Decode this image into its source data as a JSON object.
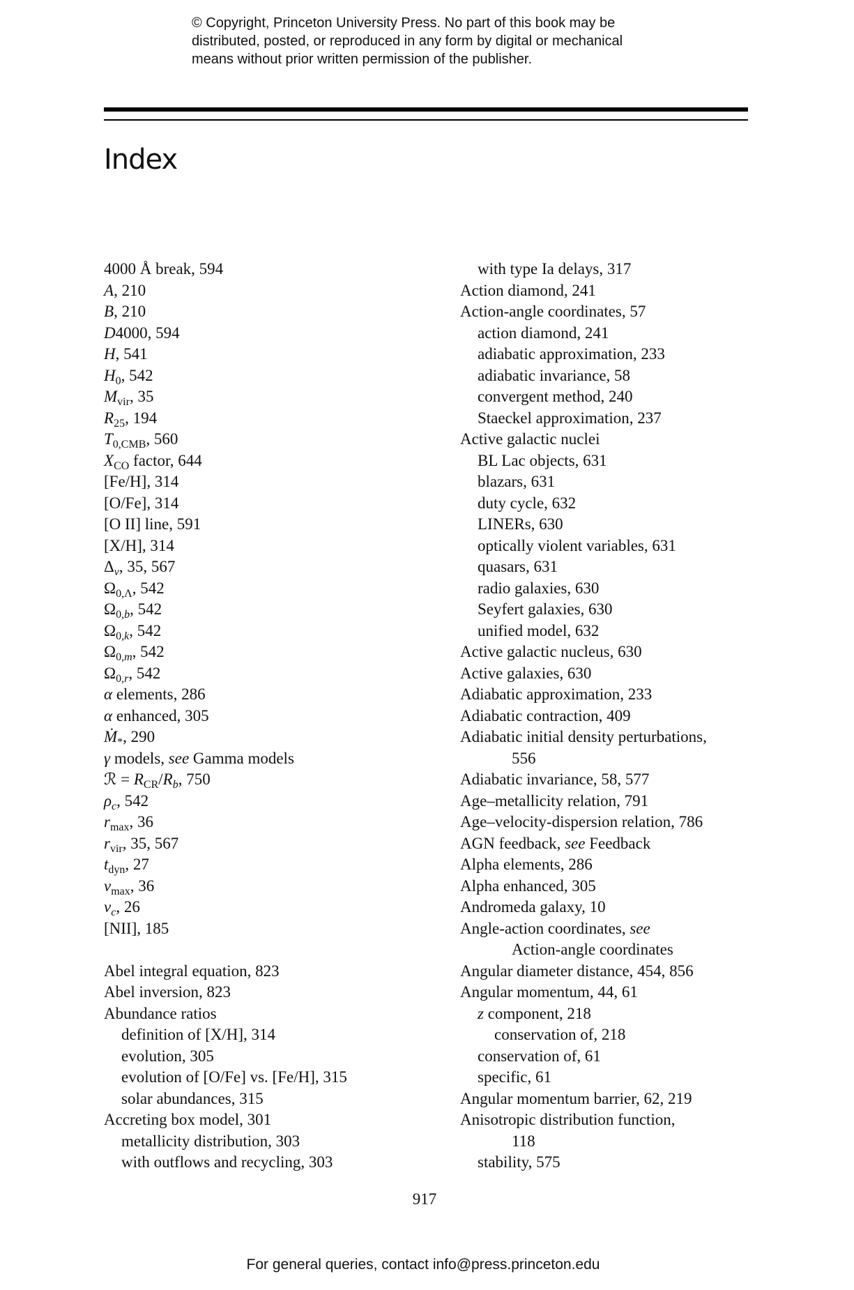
{
  "header": {
    "copyright_lines": [
      "© Copyright, Princeton University Press. No part of this book may be",
      "distributed, posted, or reproduced in any form by digital or mechanical",
      "means without prior written permission of the publisher."
    ]
  },
  "title": "Index",
  "left": [
    {
      "indent": 0,
      "segs": [
        [
          "",
          "4000 Å break, 594"
        ]
      ]
    },
    {
      "indent": 0,
      "segs": [
        [
          "i",
          "A"
        ],
        [
          "",
          ", 210"
        ]
      ]
    },
    {
      "indent": 0,
      "segs": [
        [
          "i",
          "B"
        ],
        [
          "",
          ", 210"
        ]
      ]
    },
    {
      "indent": 0,
      "segs": [
        [
          "i",
          "D"
        ],
        [
          "",
          "4000, 594"
        ]
      ]
    },
    {
      "indent": 0,
      "segs": [
        [
          "i",
          "H"
        ],
        [
          "",
          ", 541"
        ]
      ]
    },
    {
      "indent": 0,
      "segs": [
        [
          "i",
          "H"
        ],
        [
          "s",
          "0"
        ],
        [
          "",
          ", 542"
        ]
      ]
    },
    {
      "indent": 0,
      "segs": [
        [
          "i",
          "M"
        ],
        [
          "s",
          "vir"
        ],
        [
          "",
          ", 35"
        ]
      ]
    },
    {
      "indent": 0,
      "segs": [
        [
          "i",
          "R"
        ],
        [
          "s",
          "25"
        ],
        [
          "",
          ", 194"
        ]
      ]
    },
    {
      "indent": 0,
      "segs": [
        [
          "i",
          "T"
        ],
        [
          "s",
          "0,CMB"
        ],
        [
          "",
          ", 560"
        ]
      ]
    },
    {
      "indent": 0,
      "segs": [
        [
          "i",
          "X"
        ],
        [
          "s",
          "CO"
        ],
        [
          "",
          " factor, 644"
        ]
      ]
    },
    {
      "indent": 0,
      "segs": [
        [
          "",
          "[Fe/H], 314"
        ]
      ]
    },
    {
      "indent": 0,
      "segs": [
        [
          "",
          "[O/Fe], 314"
        ]
      ]
    },
    {
      "indent": 0,
      "segs": [
        [
          "",
          "[O II] line, 591"
        ]
      ]
    },
    {
      "indent": 0,
      "segs": [
        [
          "",
          "[X/H], 314"
        ]
      ]
    },
    {
      "indent": 0,
      "segs": [
        [
          "",
          "Δ"
        ],
        [
          "si",
          "v"
        ],
        [
          "",
          ", 35, 567"
        ]
      ]
    },
    {
      "indent": 0,
      "segs": [
        [
          "",
          "Ω"
        ],
        [
          "s",
          "0,Λ"
        ],
        [
          "",
          ", 542"
        ]
      ]
    },
    {
      "indent": 0,
      "segs": [
        [
          "",
          "Ω"
        ],
        [
          "s",
          "0,"
        ],
        [
          "si",
          "b"
        ],
        [
          "",
          ", 542"
        ]
      ]
    },
    {
      "indent": 0,
      "segs": [
        [
          "",
          "Ω"
        ],
        [
          "s",
          "0,"
        ],
        [
          "si",
          "k"
        ],
        [
          "",
          ", 542"
        ]
      ]
    },
    {
      "indent": 0,
      "segs": [
        [
          "",
          "Ω"
        ],
        [
          "s",
          "0,"
        ],
        [
          "si",
          "m"
        ],
        [
          "",
          ", 542"
        ]
      ]
    },
    {
      "indent": 0,
      "segs": [
        [
          "",
          "Ω"
        ],
        [
          "s",
          "0,"
        ],
        [
          "si",
          "r"
        ],
        [
          "",
          ", 542"
        ]
      ]
    },
    {
      "indent": 0,
      "segs": [
        [
          "i",
          "α"
        ],
        [
          "",
          " elements, 286"
        ]
      ]
    },
    {
      "indent": 0,
      "segs": [
        [
          "i",
          "α"
        ],
        [
          "",
          " enhanced, 305"
        ]
      ]
    },
    {
      "indent": 0,
      "segs": [
        [
          "i",
          "Ṁ"
        ],
        [
          "s",
          "*"
        ],
        [
          "",
          ", 290"
        ]
      ]
    },
    {
      "indent": 0,
      "segs": [
        [
          "i",
          "γ"
        ],
        [
          "",
          " models, "
        ],
        [
          "i",
          "see"
        ],
        [
          "",
          " Gamma models"
        ]
      ]
    },
    {
      "indent": 0,
      "segs": [
        [
          "",
          "ℛ = "
        ],
        [
          "i",
          "R"
        ],
        [
          "s",
          "CR"
        ],
        [
          "",
          "/"
        ],
        [
          "i",
          "R"
        ],
        [
          "si",
          "b"
        ],
        [
          "",
          ", 750"
        ]
      ]
    },
    {
      "indent": 0,
      "segs": [
        [
          "i",
          "ρ"
        ],
        [
          "si",
          "c"
        ],
        [
          "",
          ", 542"
        ]
      ]
    },
    {
      "indent": 0,
      "segs": [
        [
          "i",
          "r"
        ],
        [
          "s",
          "max"
        ],
        [
          "",
          ", 36"
        ]
      ]
    },
    {
      "indent": 0,
      "segs": [
        [
          "i",
          "r"
        ],
        [
          "s",
          "vir"
        ],
        [
          "",
          ", 35, 567"
        ]
      ]
    },
    {
      "indent": 0,
      "segs": [
        [
          "i",
          "t"
        ],
        [
          "s",
          "dyn"
        ],
        [
          "",
          ", 27"
        ]
      ]
    },
    {
      "indent": 0,
      "segs": [
        [
          "i",
          "v"
        ],
        [
          "s",
          "max"
        ],
        [
          "",
          ", 36"
        ]
      ]
    },
    {
      "indent": 0,
      "segs": [
        [
          "i",
          "v"
        ],
        [
          "si",
          "c"
        ],
        [
          "",
          ", 26"
        ]
      ]
    },
    {
      "indent": 0,
      "segs": [
        [
          "",
          "[NII], 185"
        ]
      ]
    },
    {
      "indent": 0,
      "segs": []
    },
    {
      "indent": 0,
      "segs": [
        [
          "",
          "Abel integral equation, 823"
        ]
      ]
    },
    {
      "indent": 0,
      "segs": [
        [
          "",
          "Abel inversion, 823"
        ]
      ]
    },
    {
      "indent": 0,
      "segs": [
        [
          "",
          "Abundance ratios"
        ]
      ]
    },
    {
      "indent": 1,
      "segs": [
        [
          "",
          "definition of [X/H], 314"
        ]
      ]
    },
    {
      "indent": 1,
      "segs": [
        [
          "",
          "evolution, 305"
        ]
      ]
    },
    {
      "indent": 1,
      "segs": [
        [
          "",
          "evolution of [O/Fe] vs. [Fe/H], 315"
        ]
      ]
    },
    {
      "indent": 1,
      "segs": [
        [
          "",
          "solar abundances, 315"
        ]
      ]
    },
    {
      "indent": 0,
      "segs": [
        [
          "",
          "Accreting box model, 301"
        ]
      ]
    },
    {
      "indent": 1,
      "segs": [
        [
          "",
          "metallicity distribution, 303"
        ]
      ]
    },
    {
      "indent": 1,
      "segs": [
        [
          "",
          "with outflows and recycling, 303"
        ]
      ]
    }
  ],
  "right": [
    {
      "indent": 1,
      "segs": [
        [
          "",
          "with type Ia delays, 317"
        ]
      ]
    },
    {
      "indent": 0,
      "segs": [
        [
          "",
          "Action diamond, 241"
        ]
      ]
    },
    {
      "indent": 0,
      "segs": [
        [
          "",
          "Action-angle coordinates, 57"
        ]
      ]
    },
    {
      "indent": 1,
      "segs": [
        [
          "",
          "action diamond, 241"
        ]
      ]
    },
    {
      "indent": 1,
      "segs": [
        [
          "",
          "adiabatic approximation, 233"
        ]
      ]
    },
    {
      "indent": 1,
      "segs": [
        [
          "",
          "adiabatic invariance, 58"
        ]
      ]
    },
    {
      "indent": 1,
      "segs": [
        [
          "",
          "convergent method, 240"
        ]
      ]
    },
    {
      "indent": 1,
      "segs": [
        [
          "",
          "Staeckel approximation, 237"
        ]
      ]
    },
    {
      "indent": 0,
      "segs": [
        [
          "",
          "Active galactic nuclei"
        ]
      ]
    },
    {
      "indent": 1,
      "segs": [
        [
          "",
          "BL Lac objects, 631"
        ]
      ]
    },
    {
      "indent": 1,
      "segs": [
        [
          "",
          "blazars, 631"
        ]
      ]
    },
    {
      "indent": 1,
      "segs": [
        [
          "",
          "duty cycle, 632"
        ]
      ]
    },
    {
      "indent": 1,
      "segs": [
        [
          "",
          "LINERs, 630"
        ]
      ]
    },
    {
      "indent": 1,
      "segs": [
        [
          "",
          "optically violent variables, 631"
        ]
      ]
    },
    {
      "indent": 1,
      "segs": [
        [
          "",
          "quasars, 631"
        ]
      ]
    },
    {
      "indent": 1,
      "segs": [
        [
          "",
          "radio galaxies, 630"
        ]
      ]
    },
    {
      "indent": 1,
      "segs": [
        [
          "",
          "Seyfert galaxies, 630"
        ]
      ]
    },
    {
      "indent": 1,
      "segs": [
        [
          "",
          "unified model, 632"
        ]
      ]
    },
    {
      "indent": 0,
      "segs": [
        [
          "",
          "Active galactic nucleus, 630"
        ]
      ]
    },
    {
      "indent": 0,
      "segs": [
        [
          "",
          "Active galaxies, 630"
        ]
      ]
    },
    {
      "indent": 0,
      "segs": [
        [
          "",
          "Adiabatic approximation, 233"
        ]
      ]
    },
    {
      "indent": 0,
      "segs": [
        [
          "",
          "Adiabatic contraction, 409"
        ]
      ]
    },
    {
      "indent": 0,
      "segs": [
        [
          "",
          "Adiabatic initial density perturbations,"
        ]
      ]
    },
    {
      "indent": 3,
      "segs": [
        [
          "",
          "556"
        ]
      ]
    },
    {
      "indent": 0,
      "segs": [
        [
          "",
          "Adiabatic invariance, 58, 577"
        ]
      ]
    },
    {
      "indent": 0,
      "segs": [
        [
          "",
          "Age–metallicity relation, 791"
        ]
      ]
    },
    {
      "indent": 0,
      "segs": [
        [
          "",
          "Age–velocity-dispersion relation, 786"
        ]
      ]
    },
    {
      "indent": 0,
      "segs": [
        [
          "",
          "AGN feedback, "
        ],
        [
          "i",
          "see"
        ],
        [
          "",
          " Feedback"
        ]
      ]
    },
    {
      "indent": 0,
      "segs": [
        [
          "",
          "Alpha elements, 286"
        ]
      ]
    },
    {
      "indent": 0,
      "segs": [
        [
          "",
          "Alpha enhanced, 305"
        ]
      ]
    },
    {
      "indent": 0,
      "segs": [
        [
          "",
          "Andromeda galaxy, 10"
        ]
      ]
    },
    {
      "indent": 0,
      "segs": [
        [
          "",
          "Angle-action coordinates, "
        ],
        [
          "i",
          "see"
        ]
      ]
    },
    {
      "indent": 3,
      "segs": [
        [
          "",
          "Action-angle coordinates"
        ]
      ]
    },
    {
      "indent": 0,
      "segs": [
        [
          "",
          "Angular diameter distance, 454, 856"
        ]
      ]
    },
    {
      "indent": 0,
      "segs": [
        [
          "",
          "Angular momentum, 44, 61"
        ]
      ]
    },
    {
      "indent": 1,
      "segs": [
        [
          "i",
          "z"
        ],
        [
          "",
          " component, 218"
        ]
      ]
    },
    {
      "indent": 2,
      "segs": [
        [
          "",
          "conservation of, 218"
        ]
      ]
    },
    {
      "indent": 1,
      "segs": [
        [
          "",
          "conservation of, 61"
        ]
      ]
    },
    {
      "indent": 1,
      "segs": [
        [
          "",
          "specific, 61"
        ]
      ]
    },
    {
      "indent": 0,
      "segs": [
        [
          "",
          "Angular momentum barrier, 62, 219"
        ]
      ]
    },
    {
      "indent": 0,
      "segs": [
        [
          "",
          "Anisotropic distribution function,"
        ]
      ]
    },
    {
      "indent": 3,
      "segs": [
        [
          "",
          "118"
        ]
      ]
    },
    {
      "indent": 1,
      "segs": [
        [
          "",
          "stability, 575"
        ]
      ]
    }
  ],
  "page_number": "917",
  "footer": "For general queries, contact info@press.princeton.edu"
}
